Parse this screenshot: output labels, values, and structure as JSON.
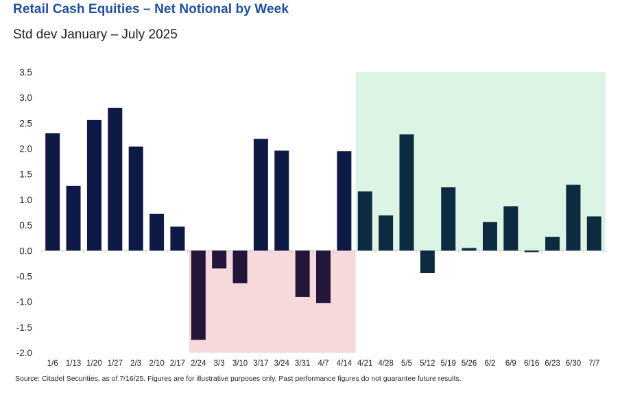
{
  "title": "Retail Cash Equities – Net Notional by Week",
  "subtitle": "Std dev January – July 2025",
  "source": "Source: Citadel Securities, as of 7/16/25. Figures are for illustrative purposes only. Past performance figures do not guarantee future results.",
  "colors": {
    "bar_early": "#0e1a45",
    "bar_negative": "#24153a",
    "bar_late": "#0c2a40",
    "shade_negative": "#f6d9da",
    "shade_positive": "#dcf4e4",
    "baseline": "#c8c8c8",
    "text": "#222222"
  },
  "chart_data": {
    "type": "bar",
    "categories": [
      "1/6",
      "1/13",
      "1/20",
      "1/27",
      "2/3",
      "2/10",
      "2/17",
      "2/24",
      "3/3",
      "3/10",
      "3/17",
      "3/24",
      "3/31",
      "4/7",
      "4/14",
      "4/21",
      "4/28",
      "5/5",
      "5/12",
      "5/19",
      "5/26",
      "6/2",
      "6/9",
      "6/16",
      "6/23",
      "6/30",
      "7/7"
    ],
    "values": [
      2.3,
      1.27,
      2.56,
      2.8,
      2.04,
      0.72,
      0.47,
      -1.75,
      -0.35,
      -0.64,
      2.19,
      1.96,
      -0.91,
      -1.03,
      1.95,
      1.16,
      0.69,
      2.28,
      -0.44,
      1.24,
      0.05,
      0.56,
      0.87,
      -0.03,
      0.27,
      1.29,
      0.67
    ],
    "ylim": [
      -2.0,
      3.5
    ],
    "yticks": [
      3.5,
      3.0,
      2.5,
      2.0,
      1.5,
      1.0,
      0.5,
      0.0,
      -0.5,
      -1.0,
      -1.5,
      -2.0
    ],
    "ytick_labels": [
      "3.5",
      "3.0",
      "2.5",
      "2.0",
      "1.5",
      "1.0",
      "0.5",
      "0.0",
      "-0.5",
      "-1.0",
      "-1.5",
      "-2.0"
    ],
    "shaded_regions": [
      {
        "from": "2/24",
        "to": "4/14",
        "ymin": -2.0,
        "ymax": 0.0,
        "kind": "negative"
      },
      {
        "from": "4/21",
        "to": "7/7",
        "ymin": 0.0,
        "ymax": 3.5,
        "kind": "positive"
      }
    ],
    "grid": false,
    "legend": "none"
  }
}
